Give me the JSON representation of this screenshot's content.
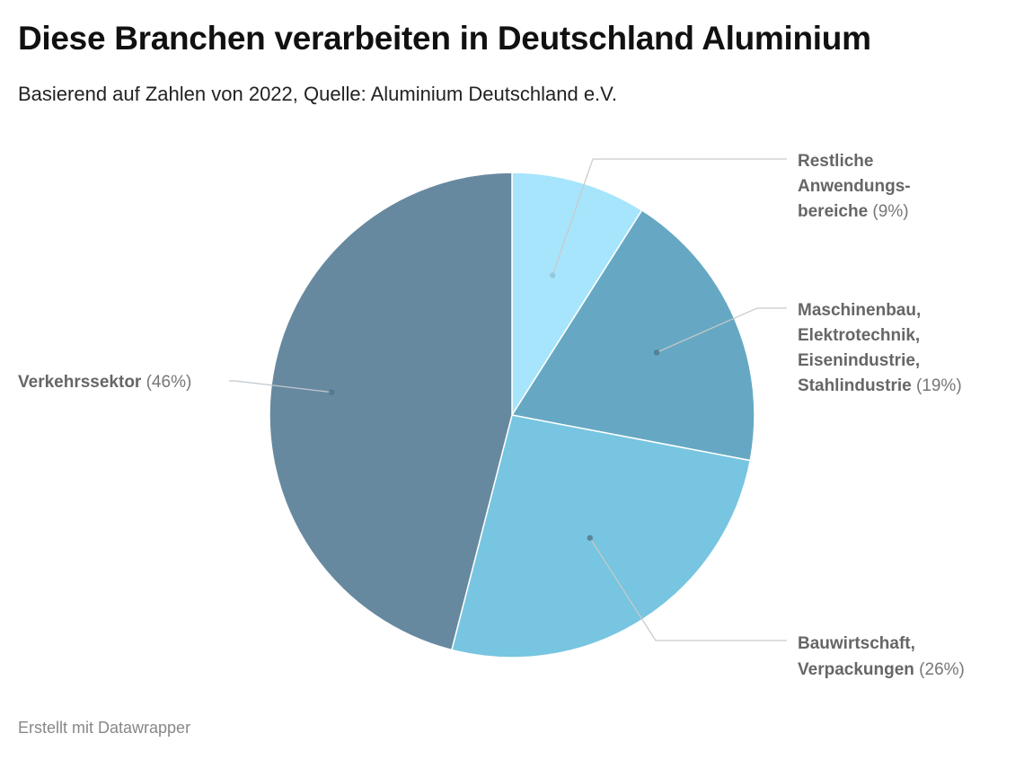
{
  "title": "Diese Branchen verarbeiten in Deutschland Aluminium",
  "subtitle": "Basierend auf Zahlen von 2022, Quelle: Aluminium Deutschland e.V.",
  "footer": "Erstellt mit Datawrapper",
  "chart_data": {
    "type": "pie",
    "title": "Diese Branchen verarbeiten in Deutschland Aluminium",
    "subtitle": "Basierend auf Zahlen von 2022, Quelle: Aluminium Deutschland e.V.",
    "slices": [
      {
        "label_lines": [
          "Restliche",
          "Anwendungs-",
          "bereiche"
        ],
        "value": 9,
        "pct_label": "(9%)",
        "color": "#a6e5fb"
      },
      {
        "label_lines": [
          "Maschinenbau,",
          "Elektrotechnik,",
          "Eisenindustrie,",
          "Stahlindustrie"
        ],
        "value": 19,
        "pct_label": "(19%)",
        "color": "#66a8c3"
      },
      {
        "label_lines": [
          "Bauwirtschaft,",
          "Verpackungen"
        ],
        "value": 26,
        "pct_label": "(26%)",
        "color": "#77c5e0"
      },
      {
        "label_lines": [
          "Verkehrssektor"
        ],
        "value": 46,
        "pct_label": "(46%)",
        "color": "#67899f"
      }
    ]
  }
}
